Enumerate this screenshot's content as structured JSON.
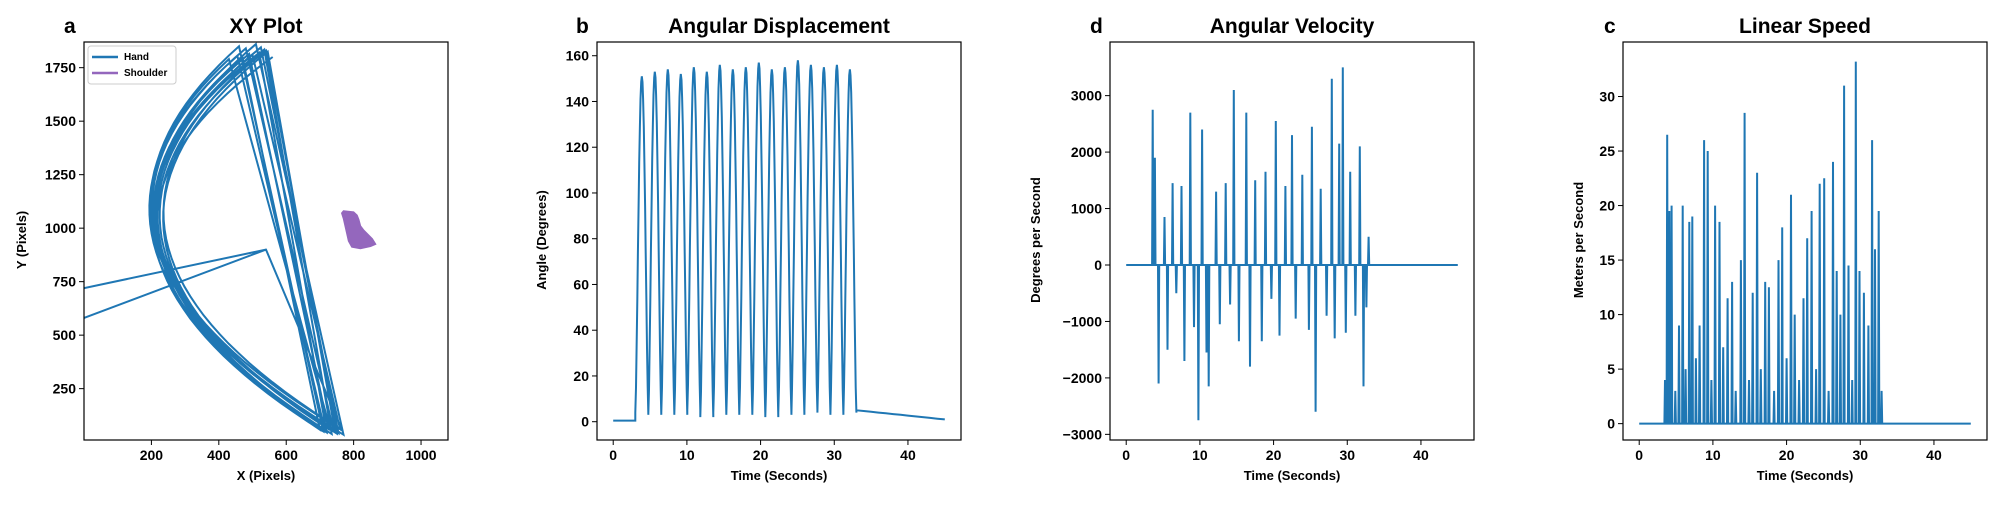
{
  "chart_data": [
    {
      "letter": "a",
      "type": "line",
      "title": "XY Plot",
      "xlabel": "X (Pixels)",
      "ylabel": "Y (Pixels)",
      "xlim": [
        0,
        1080
      ],
      "ylim": [
        10,
        1870
      ],
      "xticks": [
        200,
        400,
        600,
        800,
        1000
      ],
      "yticks": [
        250,
        500,
        750,
        1000,
        1250,
        1500,
        1750
      ],
      "grid": false,
      "legend": {
        "placement": "top-left"
      },
      "series": [
        {
          "name": "Hand",
          "color": "#1f77b4",
          "kind": "arcs",
          "arcs": [
            [
              0,
              560,
              1800,
              720,
              45,
              1120,
              900
            ],
            [
              5,
              520,
              1820,
              740,
              55,
              1080,
              900
            ],
            [
              10,
              480,
              1840,
              760,
              60,
              1040,
              880
            ],
            [
              15,
              500,
              1810,
              710,
              50,
              1000,
              920
            ],
            [
              20,
              460,
              1850,
              750,
              40,
              1060,
              860
            ],
            [
              25,
              540,
              1830,
              730,
              65,
              1100,
              940
            ],
            [
              30,
              430,
              1790,
              770,
              35,
              1020,
              880
            ],
            [
              35,
              510,
              1860,
              700,
              58,
              990,
              910
            ],
            [
              40,
              470,
              1800,
              745,
              48,
              1130,
              870
            ],
            [
              45,
              545,
              1825,
              725,
              62,
              1010,
              895
            ],
            [
              12,
              490,
              1815,
              755,
              42,
              1070,
              905
            ],
            [
              28,
              525,
              1845,
              715,
              52,
              1050,
              885
            ],
            [
              18,
              455,
              1805,
              735,
              38,
              1090,
              925
            ],
            [
              38,
              535,
              1835,
              765,
              57,
              1030,
              865
            ]
          ],
          "spikes": [
            [
              540,
              900,
              0,
              720
            ],
            [
              540,
              900,
              0,
              580
            ]
          ]
        },
        {
          "name": "Shoulder",
          "color": "#9467bd",
          "kind": "blob",
          "polygon": [
            [
              770,
              1080
            ],
            [
              800,
              1075
            ],
            [
              810,
              1060
            ],
            [
              815,
              1040
            ],
            [
              820,
              1010
            ],
            [
              830,
              990
            ],
            [
              855,
              950
            ],
            [
              865,
              925
            ],
            [
              850,
              915
            ],
            [
              820,
              905
            ],
            [
              795,
              912
            ],
            [
              785,
              940
            ],
            [
              780,
              975
            ],
            [
              775,
              1010
            ],
            [
              770,
              1045
            ],
            [
              765,
              1070
            ]
          ]
        }
      ]
    },
    {
      "letter": "b",
      "type": "line",
      "title": "Angular Displacement",
      "xlabel": "Time (Seconds)",
      "ylabel": "Angle (Degrees)",
      "xlim": [
        -2.2,
        47.2
      ],
      "ylim": [
        -8,
        166
      ],
      "xticks": [
        0,
        10,
        20,
        30,
        40
      ],
      "yticks": [
        0,
        20,
        40,
        60,
        80,
        100,
        120,
        140,
        160
      ],
      "grid": false,
      "series": [
        {
          "name": "",
          "color": "#1f77b4",
          "baseline": {
            "start": 0,
            "end": 3,
            "value": 0.5
          },
          "cycles": {
            "start": 3,
            "end": 33,
            "peaks": [
              151,
              153,
              154,
              152,
              155,
              153,
              156,
              154,
              155,
              157,
              154,
              155,
              158,
              156,
              155,
              156,
              154
            ],
            "troughs": [
              4,
              3,
              4,
              3,
              5,
              2,
              4,
              3,
              4,
              3,
              2,
              4,
              3,
              5,
              4,
              3,
              4
            ]
          },
          "decay": {
            "start": 33,
            "end": 45,
            "from": 5,
            "to": 1
          }
        }
      ]
    },
    {
      "letter": "d",
      "type": "line",
      "title": "Angular Velocity",
      "xlabel": "Time (Seconds)",
      "ylabel": "Degrees per Second",
      "xlim": [
        -2.2,
        47.2
      ],
      "ylim": [
        -3100,
        3950
      ],
      "xticks": [
        0,
        10,
        20,
        30,
        40
      ],
      "yticks": [
        -3000,
        -2000,
        -1000,
        0,
        1000,
        2000,
        3000
      ],
      "grid": false,
      "series": [
        {
          "name": "",
          "color": "#1f77b4",
          "active": [
            3.2,
            33
          ],
          "spikes": [
            [
              3.6,
              2750
            ],
            [
              3.9,
              1900
            ],
            [
              4.4,
              -2100
            ],
            [
              5.2,
              850
            ],
            [
              5.6,
              -1500
            ],
            [
              6.3,
              1450
            ],
            [
              6.8,
              -500
            ],
            [
              7.5,
              1400
            ],
            [
              7.9,
              -1700
            ],
            [
              8.7,
              2700
            ],
            [
              9.2,
              -1100
            ],
            [
              9.8,
              -2750
            ],
            [
              10.3,
              2400
            ],
            [
              10.9,
              -1550
            ],
            [
              11.2,
              -2150
            ],
            [
              12.2,
              1300
            ],
            [
              12.7,
              -1050
            ],
            [
              13.5,
              1450
            ],
            [
              14.1,
              -700
            ],
            [
              14.6,
              3100
            ],
            [
              15.3,
              -1350
            ],
            [
              16.3,
              2700
            ],
            [
              16.8,
              -1800
            ],
            [
              17.5,
              1500
            ],
            [
              18.4,
              -1350
            ],
            [
              18.9,
              1650
            ],
            [
              19.7,
              -600
            ],
            [
              20.3,
              2550
            ],
            [
              20.8,
              -1250
            ],
            [
              21.6,
              1400
            ],
            [
              22.5,
              2300
            ],
            [
              23.0,
              -950
            ],
            [
              23.9,
              1600
            ],
            [
              24.8,
              -1150
            ],
            [
              25.2,
              2450
            ],
            [
              25.7,
              -2600
            ],
            [
              26.4,
              1350
            ],
            [
              27.2,
              -900
            ],
            [
              27.9,
              3300
            ],
            [
              28.3,
              -1300
            ],
            [
              28.9,
              2150
            ],
            [
              29.4,
              3500
            ],
            [
              29.8,
              -1200
            ],
            [
              30.4,
              1650
            ],
            [
              31.1,
              -900
            ],
            [
              31.7,
              2100
            ],
            [
              32.2,
              -2150
            ],
            [
              32.6,
              -750
            ],
            [
              32.9,
              500
            ]
          ]
        }
      ]
    },
    {
      "letter": "c",
      "type": "line",
      "title": "Linear Speed",
      "xlabel": "Time (Seconds)",
      "ylabel": "Meters per Second",
      "xlim": [
        -2.2,
        47.2
      ],
      "ylim": [
        -1.5,
        35
      ],
      "xticks": [
        0,
        10,
        20,
        30,
        40
      ],
      "yticks": [
        0,
        5,
        10,
        15,
        20,
        25,
        30
      ],
      "grid": false,
      "series": [
        {
          "name": "",
          "color": "#1f77b4",
          "active": [
            3.2,
            33
          ],
          "spikes": [
            [
              3.5,
              4
            ],
            [
              3.8,
              26.5
            ],
            [
              4.1,
              19.5
            ],
            [
              4.4,
              20
            ],
            [
              4.9,
              3
            ],
            [
              5.4,
              9
            ],
            [
              5.9,
              20
            ],
            [
              6.3,
              5
            ],
            [
              6.8,
              18.5
            ],
            [
              7.2,
              19
            ],
            [
              7.7,
              6
            ],
            [
              8.2,
              9
            ],
            [
              8.8,
              26
            ],
            [
              9.3,
              25
            ],
            [
              9.8,
              4
            ],
            [
              10.3,
              20
            ],
            [
              10.9,
              18.5
            ],
            [
              11.4,
              7
            ],
            [
              12.0,
              11.5
            ],
            [
              12.6,
              13
            ],
            [
              13.1,
              3
            ],
            [
              13.8,
              15
            ],
            [
              14.3,
              28.5
            ],
            [
              14.9,
              4
            ],
            [
              15.4,
              12
            ],
            [
              16.0,
              23
            ],
            [
              16.5,
              5
            ],
            [
              17.1,
              13
            ],
            [
              17.6,
              12.5
            ],
            [
              18.3,
              3
            ],
            [
              18.9,
              15
            ],
            [
              19.4,
              18
            ],
            [
              20.0,
              6
            ],
            [
              20.6,
              21
            ],
            [
              21.1,
              10
            ],
            [
              21.7,
              4
            ],
            [
              22.3,
              11.5
            ],
            [
              22.8,
              17
            ],
            [
              23.4,
              19.5
            ],
            [
              24.0,
              5
            ],
            [
              24.5,
              22
            ],
            [
              25.1,
              22.5
            ],
            [
              25.7,
              3
            ],
            [
              26.3,
              24
            ],
            [
              26.8,
              14
            ],
            [
              27.3,
              10
            ],
            [
              27.8,
              31
            ],
            [
              28.4,
              14.5
            ],
            [
              28.9,
              4
            ],
            [
              29.4,
              33.2
            ],
            [
              29.9,
              14
            ],
            [
              30.5,
              12
            ],
            [
              31.1,
              9
            ],
            [
              31.6,
              26
            ],
            [
              32.0,
              16
            ],
            [
              32.5,
              19.5
            ],
            [
              32.9,
              3
            ]
          ]
        }
      ]
    }
  ]
}
